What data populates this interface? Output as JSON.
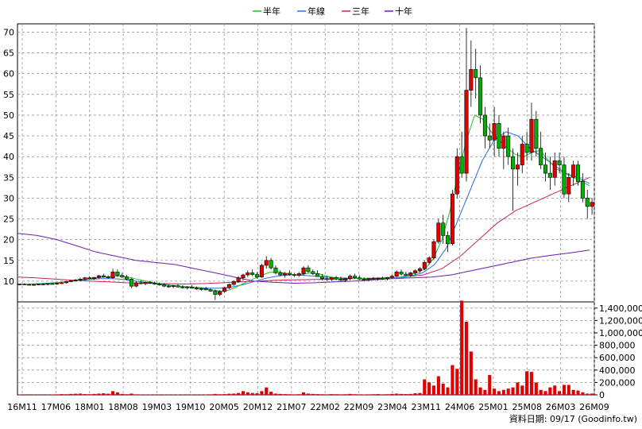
{
  "chart_data": {
    "type": "candlestick",
    "legend": [
      {
        "name": "半年",
        "color": "#22c422"
      },
      {
        "name": "年線",
        "color": "#2a6fdc"
      },
      {
        "name": "三年",
        "color": "#d0205a"
      },
      {
        "name": "十年",
        "color": "#6a1fb0"
      }
    ],
    "price_axis": {
      "min": 5,
      "max": 72,
      "ticks": [
        10,
        15,
        20,
        25,
        30,
        35,
        40,
        45,
        50,
        55,
        60,
        65,
        70
      ]
    },
    "volume_axis": {
      "min": 0,
      "max": 1500000,
      "ticks": [
        "0",
        "200,000",
        "400,000",
        "600,000",
        "800,000",
        "1,000,000",
        "1,200,000",
        "1,400,000"
      ],
      "tick_values": [
        0,
        200000,
        400000,
        600000,
        800000,
        1000000,
        1200000,
        1400000
      ]
    },
    "x_labels": [
      "16M11",
      "17M06",
      "18M01",
      "18M08",
      "19M03",
      "19M10",
      "20M05",
      "20M12",
      "21M07",
      "22M02",
      "22M09",
      "23M04",
      "23M11",
      "24M06",
      "25M01",
      "25M08",
      "26M03",
      "26M09"
    ],
    "candle_start": "2016-11",
    "candles_ohlc": [
      [
        9.2,
        9.4,
        9.0,
        9.3
      ],
      [
        9.3,
        9.5,
        9.1,
        9.2
      ],
      [
        9.2,
        9.4,
        9.0,
        9.1
      ],
      [
        9.1,
        9.3,
        8.9,
        9.2
      ],
      [
        9.2,
        9.4,
        9.0,
        9.3
      ],
      [
        9.3,
        9.5,
        9.1,
        9.2
      ],
      [
        9.2,
        9.4,
        9.0,
        9.4
      ],
      [
        9.4,
        9.6,
        9.2,
        9.3
      ],
      [
        9.3,
        9.5,
        9.1,
        9.5
      ],
      [
        9.5,
        9.8,
        9.3,
        9.6
      ],
      [
        9.6,
        10.0,
        9.4,
        9.9
      ],
      [
        9.9,
        10.3,
        9.7,
        10.1
      ],
      [
        10.1,
        10.5,
        9.9,
        10.3
      ],
      [
        10.3,
        10.8,
        10.0,
        10.5
      ],
      [
        10.5,
        11.0,
        10.2,
        10.8
      ],
      [
        10.8,
        11.2,
        10.4,
        10.6
      ],
      [
        10.6,
        11.0,
        10.3,
        10.9
      ],
      [
        10.9,
        11.5,
        10.6,
        11.3
      ],
      [
        11.3,
        11.8,
        10.9,
        11.0
      ],
      [
        11.0,
        11.4,
        10.6,
        10.8
      ],
      [
        10.8,
        13.0,
        10.5,
        12.2
      ],
      [
        12.2,
        12.8,
        11.0,
        11.4
      ],
      [
        11.4,
        12.0,
        10.8,
        11.0
      ],
      [
        11.0,
        11.5,
        10.2,
        10.5
      ],
      [
        10.5,
        10.8,
        8.3,
        8.8
      ],
      [
        8.8,
        10.0,
        8.5,
        9.6
      ],
      [
        9.6,
        10.2,
        9.2,
        9.4
      ],
      [
        9.4,
        9.9,
        9.0,
        9.7
      ],
      [
        9.7,
        10.1,
        9.3,
        9.5
      ],
      [
        9.5,
        9.9,
        9.1,
        9.3
      ],
      [
        9.3,
        9.7,
        8.9,
        9.1
      ],
      [
        9.1,
        9.5,
        8.6,
        8.8
      ],
      [
        8.8,
        9.2,
        8.4,
        8.7
      ],
      [
        8.7,
        9.1,
        8.3,
        8.9
      ],
      [
        8.9,
        9.3,
        8.5,
        8.6
      ],
      [
        8.6,
        9.0,
        8.2,
        8.4
      ],
      [
        8.4,
        8.8,
        8.0,
        8.6
      ],
      [
        8.6,
        9.0,
        8.2,
        8.3
      ],
      [
        8.3,
        8.7,
        7.9,
        8.1
      ],
      [
        8.1,
        8.5,
        7.7,
        8.2
      ],
      [
        8.2,
        8.6,
        7.8,
        7.9
      ],
      [
        7.9,
        8.3,
        7.4,
        7.6
      ],
      [
        7.6,
        8.0,
        5.5,
        6.8
      ],
      [
        6.8,
        7.8,
        6.4,
        7.5
      ],
      [
        7.5,
        8.6,
        7.2,
        8.4
      ],
      [
        8.4,
        9.4,
        8.1,
        9.2
      ],
      [
        9.2,
        10.2,
        8.9,
        9.9
      ],
      [
        9.9,
        11.2,
        9.6,
        10.8
      ],
      [
        10.8,
        11.8,
        10.2,
        11.5
      ],
      [
        11.5,
        12.6,
        11.0,
        12.0
      ],
      [
        12.0,
        12.8,
        11.2,
        11.6
      ],
      [
        11.6,
        12.2,
        10.6,
        11.0
      ],
      [
        11.0,
        14.2,
        10.8,
        13.8
      ],
      [
        13.8,
        16.0,
        13.0,
        15.0
      ],
      [
        15.0,
        15.6,
        12.8,
        13.2
      ],
      [
        13.2,
        13.8,
        11.6,
        12.0
      ],
      [
        12.0,
        12.6,
        11.2,
        11.5
      ],
      [
        11.5,
        12.2,
        10.8,
        11.9
      ],
      [
        11.9,
        12.6,
        11.3,
        11.6
      ],
      [
        11.6,
        12.0,
        11.0,
        11.4
      ],
      [
        11.4,
        12.2,
        11.0,
        11.8
      ],
      [
        11.8,
        13.6,
        11.4,
        13.2
      ],
      [
        13.2,
        13.8,
        12.0,
        12.3
      ],
      [
        12.3,
        12.8,
        11.5,
        11.8
      ],
      [
        11.8,
        12.6,
        11.2,
        11.1
      ],
      [
        11.1,
        11.7,
        10.2,
        10.6
      ],
      [
        10.6,
        11.2,
        10.0,
        10.4
      ],
      [
        10.4,
        11.0,
        10.0,
        10.8
      ],
      [
        10.8,
        11.3,
        10.2,
        10.5
      ],
      [
        10.5,
        11.1,
        10.0,
        10.2
      ],
      [
        10.2,
        10.8,
        9.8,
        10.6
      ],
      [
        10.6,
        11.6,
        10.2,
        11.2
      ],
      [
        11.2,
        11.8,
        10.5,
        10.8
      ],
      [
        10.8,
        11.4,
        10.3,
        10.5
      ],
      [
        10.5,
        10.9,
        9.9,
        10.3
      ],
      [
        10.3,
        10.8,
        9.9,
        10.6
      ],
      [
        10.6,
        11.0,
        10.2,
        10.5
      ],
      [
        10.5,
        10.9,
        10.1,
        10.7
      ],
      [
        10.7,
        11.1,
        10.3,
        10.6
      ],
      [
        10.6,
        11.0,
        10.2,
        10.9
      ],
      [
        10.9,
        11.6,
        10.6,
        11.2
      ],
      [
        11.2,
        12.6,
        11.0,
        12.2
      ],
      [
        12.2,
        12.8,
        11.4,
        11.7
      ],
      [
        11.7,
        12.3,
        11.2,
        11.4
      ],
      [
        11.4,
        12.2,
        11.0,
        12.0
      ],
      [
        12.0,
        12.8,
        11.5,
        12.5
      ],
      [
        12.5,
        13.4,
        12.0,
        13.0
      ],
      [
        13.0,
        15.0,
        12.6,
        14.5
      ],
      [
        14.5,
        16.0,
        14.0,
        15.6
      ],
      [
        15.6,
        20.0,
        15.2,
        19.5
      ],
      [
        19.5,
        25.0,
        19.0,
        24.0
      ],
      [
        24.0,
        26.0,
        19.0,
        21.0
      ],
      [
        21.0,
        22.0,
        17.0,
        19.0
      ],
      [
        19.0,
        32.0,
        18.6,
        31.0
      ],
      [
        31.0,
        42.0,
        30.0,
        40.0
      ],
      [
        40.0,
        46.0,
        35.0,
        36.0
      ],
      [
        36.0,
        71.0,
        34.0,
        56.0
      ],
      [
        56.0,
        68.0,
        52.0,
        61.0
      ],
      [
        61.0,
        66.0,
        54.0,
        59.0
      ],
      [
        59.0,
        62.0,
        48.0,
        50.0
      ],
      [
        50.0,
        52.0,
        42.0,
        45.0
      ],
      [
        45.0,
        48.0,
        42.0,
        44.0
      ],
      [
        44.0,
        52.0,
        40.0,
        48.0
      ],
      [
        48.0,
        50.0,
        40.0,
        42.0
      ],
      [
        42.0,
        46.0,
        37.0,
        45.0
      ],
      [
        45.0,
        47.0,
        38.0,
        40.0
      ],
      [
        40.0,
        42.0,
        27.0,
        37.0
      ],
      [
        37.0,
        41.0,
        33.0,
        38.0
      ],
      [
        38.0,
        45.0,
        36.0,
        43.0
      ],
      [
        43.0,
        46.0,
        39.0,
        41.0
      ],
      [
        41.0,
        53.0,
        39.0,
        49.0
      ],
      [
        49.0,
        51.0,
        40.0,
        42.0
      ],
      [
        42.0,
        46.0,
        37.0,
        38.0
      ],
      [
        38.0,
        41.0,
        34.0,
        36.0
      ],
      [
        36.0,
        40.0,
        32.0,
        35.0
      ],
      [
        35.0,
        41.0,
        33.0,
        39.0
      ],
      [
        39.0,
        41.0,
        36.0,
        38.0
      ],
      [
        38.0,
        40.0,
        30.0,
        31.0
      ],
      [
        31.0,
        36.0,
        29.0,
        35.0
      ],
      [
        35.0,
        39.0,
        33.0,
        38.0
      ],
      [
        38.0,
        39.0,
        33.0,
        34.0
      ],
      [
        34.0,
        36.0,
        29.0,
        30.0
      ],
      [
        30.0,
        32.0,
        25.0,
        28.0
      ],
      [
        28.0,
        30.0,
        26.0,
        29.0
      ]
    ],
    "ma_half_year": [
      9.2,
      9.3,
      9.3,
      9.4,
      9.6,
      9.8,
      10.0,
      10.3,
      10.6,
      10.8,
      11.0,
      11.2,
      11.2,
      10.9,
      10.4,
      10.0,
      9.6,
      9.3,
      9.0,
      8.8,
      8.6,
      8.4,
      8.2,
      7.9,
      7.6,
      7.8,
      8.6,
      9.6,
      10.5,
      11.4,
      12.1,
      12.3,
      11.8,
      11.4,
      11.6,
      12.0,
      11.8,
      11.2,
      10.7,
      10.4,
      10.6,
      10.7,
      10.6,
      10.5,
      10.6,
      10.8,
      11.0,
      11.5,
      12.0,
      13.0,
      15.5,
      20.0,
      27.0,
      36.0,
      44.0,
      50.0,
      49.0,
      46.0,
      44.0,
      42.0,
      40.5,
      40.0,
      41.0,
      41.5,
      39.0,
      37.0,
      36.0,
      35.0,
      34.0,
      33.0
    ],
    "ma_year": [
      9.3,
      9.4,
      9.6,
      9.8,
      10.1,
      10.4,
      10.6,
      10.6,
      10.4,
      10.0,
      9.6,
      9.2,
      8.9,
      8.7,
      8.5,
      8.3,
      8.3,
      8.6,
      9.2,
      10.0,
      10.8,
      11.3,
      11.5,
      11.4,
      11.2,
      11.0,
      10.8,
      10.7,
      10.6,
      10.6,
      10.6,
      10.8,
      11.2,
      12.0,
      14.0,
      18.0,
      25.0,
      32.0,
      39.0,
      44.0,
      46.0,
      45.0,
      42.0,
      40.0,
      38.0,
      36.0,
      35.0,
      33.5
    ],
    "ma_three_year": [
      11.0,
      10.8,
      10.5,
      10.2,
      10.0,
      9.8,
      9.6,
      9.5,
      9.4,
      9.3,
      9.4,
      9.6,
      9.8,
      10.0,
      10.2,
      10.3,
      10.4,
      10.5,
      10.6,
      10.7,
      10.8,
      11.0,
      11.5,
      13.0,
      16.0,
      20.0,
      24.0,
      27.0,
      29.0,
      31.0,
      33.0,
      35.0
    ],
    "ma_ten_year": [
      21.5,
      21.0,
      20.0,
      18.5,
      17.0,
      16.0,
      15.0,
      14.5,
      14.0,
      13.0,
      12.0,
      11.0,
      10.0,
      9.7,
      9.5,
      9.6,
      9.8,
      10.0,
      10.3,
      10.6,
      10.8,
      11.0,
      11.5,
      12.5,
      13.5,
      14.5,
      15.5,
      16.2,
      16.8,
      17.5
    ],
    "volumes": [
      5000,
      3000,
      2000,
      4000,
      3000,
      2000,
      3000,
      5000,
      8000,
      12000,
      10000,
      15000,
      18000,
      20000,
      12000,
      10000,
      15000,
      20000,
      25000,
      18000,
      60000,
      40000,
      15000,
      10000,
      20000,
      8000,
      5000,
      6000,
      5000,
      4000,
      5000,
      6000,
      5000,
      4000,
      6000,
      5000,
      4000,
      6000,
      5000,
      4000,
      5000,
      8000,
      15000,
      10000,
      12000,
      18000,
      20000,
      30000,
      60000,
      40000,
      30000,
      25000,
      60000,
      120000,
      50000,
      20000,
      15000,
      12000,
      10000,
      8000,
      10000,
      40000,
      20000,
      15000,
      12000,
      10000,
      8000,
      12000,
      10000,
      8000,
      10000,
      15000,
      10000,
      8000,
      6000,
      8000,
      10000,
      12000,
      8000,
      10000,
      15000,
      20000,
      15000,
      12000,
      15000,
      25000,
      30000,
      250000,
      200000,
      150000,
      300000,
      180000,
      120000,
      480000,
      420000,
      1520000,
      1180000,
      700000,
      250000,
      120000,
      80000,
      320000,
      100000,
      60000,
      80000,
      100000,
      120000,
      200000,
      150000,
      380000,
      370000,
      200000,
      80000,
      60000,
      120000,
      150000,
      60000,
      160000,
      160000,
      80000,
      70000,
      40000,
      20000,
      20000
    ]
  },
  "footer": "資料日期: 09/17  (Goodinfo.tw)"
}
